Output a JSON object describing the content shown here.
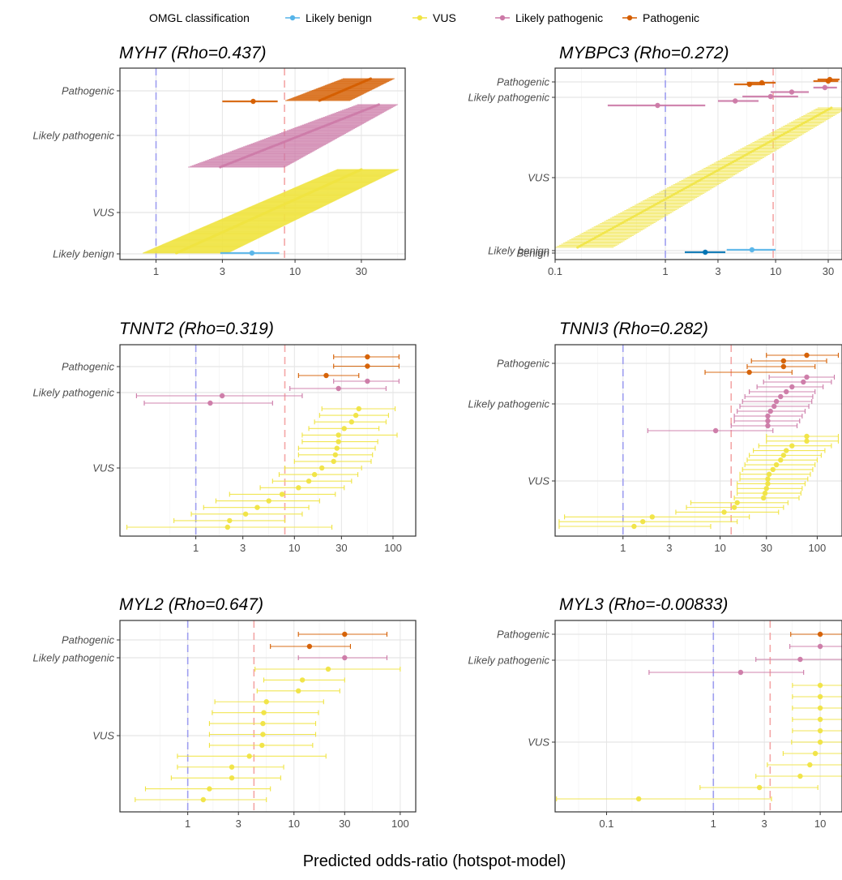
{
  "legend": {
    "title": "OMGL classification",
    "items": [
      {
        "label": "Likely benign",
        "color": "#56B4E9"
      },
      {
        "label": "VUS",
        "color": "#F0E442"
      },
      {
        "label": "Likely pathogenic",
        "color": "#CC79A7"
      },
      {
        "label": "Pathogenic",
        "color": "#D55E00"
      }
    ]
  },
  "x_axis_title": "Predicted odds-ratio (hotspot-model)",
  "reference_lines": {
    "null_or": 1,
    "null_color": "#9e9ef0",
    "threshold_color": "#f4a6a6"
  },
  "chart_data": [
    {
      "type": "scatter",
      "gene": "MYH7",
      "title": "MYH7 (Rho=0.437)",
      "x_scale": "log10",
      "xlim": [
        0.55,
        62
      ],
      "xticks": [
        1,
        3,
        10,
        30
      ],
      "threshold": 8.4,
      "categories": [
        "Pathogenic",
        "Likely pathogenic",
        "VUS",
        "Likely benign"
      ],
      "bands": [
        {
          "category": "Pathogenic",
          "n": 40,
          "lo_min": 8.5,
          "lo_max": 22,
          "mid_min": 15,
          "mid_max": 35,
          "hi_min": 25,
          "hi_max": 52,
          "color": "#D55E00"
        },
        {
          "category": "Likely pathogenic",
          "n": 90,
          "lo_min": 1.7,
          "lo_max": 28,
          "mid_min": 2.9,
          "mid_max": 40,
          "hi_min": 8.5,
          "hi_max": 55,
          "color": "#CC79A7"
        },
        {
          "category": "VUS",
          "n": 220,
          "lo_min": 0.8,
          "lo_max": 20,
          "mid_min": 1.4,
          "mid_max": 30,
          "hi_min": 3.3,
          "hi_max": 56,
          "color": "#F0E442"
        }
      ],
      "points": [
        {
          "category": "Pathogenic",
          "or": 5.0,
          "lo": 3.0,
          "hi": 7.5
        },
        {
          "category": "Likely benign",
          "or": 4.9,
          "lo": 2.9,
          "hi": 7.7
        }
      ]
    },
    {
      "type": "scatter",
      "gene": "MYBPC3",
      "title": "MYBPC3 (Rho=0.272)",
      "x_scale": "log10",
      "xlim": [
        0.1,
        40
      ],
      "xticks": [
        0.1,
        1,
        3,
        10,
        30
      ],
      "threshold": 9.5,
      "categories": [
        "Pathogenic",
        "Likely pathogenic",
        "VUS",
        "Likely benign",
        "Benign"
      ],
      "bands": [
        {
          "category": "VUS",
          "n": 130,
          "lo_min": 0.1,
          "lo_max": 24,
          "mid_min": 0.16,
          "mid_max": 32,
          "hi_min": 0.34,
          "hi_max": 45,
          "color": "#F0E442"
        }
      ],
      "points": [
        {
          "category": "Pathogenic",
          "or": 31,
          "lo": 24,
          "hi": 38
        },
        {
          "category": "Pathogenic",
          "or": 30,
          "lo": 22,
          "hi": 37
        },
        {
          "category": "Pathogenic",
          "or": 7.5,
          "lo": 5.5,
          "hi": 10
        },
        {
          "category": "Pathogenic",
          "or": 5.8,
          "lo": 4.2,
          "hi": 8
        },
        {
          "category": "Likely pathogenic",
          "or": 28,
          "lo": 22,
          "hi": 36
        },
        {
          "category": "Likely pathogenic",
          "or": 14,
          "lo": 9,
          "hi": 20
        },
        {
          "category": "Likely pathogenic",
          "or": 9,
          "lo": 5,
          "hi": 16
        },
        {
          "category": "Likely pathogenic",
          "or": 4.3,
          "lo": 3,
          "hi": 7
        },
        {
          "category": "Likely pathogenic",
          "or": 0.85,
          "lo": 0.3,
          "hi": 2.3
        },
        {
          "category": "Likely benign",
          "or": 6.1,
          "lo": 3.6,
          "hi": 10
        },
        {
          "category": "Benign",
          "or": 2.3,
          "lo": 1.5,
          "hi": 3.5
        }
      ]
    },
    {
      "type": "scatter",
      "gene": "TNNT2",
      "title": "TNNT2 (Rho=0.319)",
      "x_scale": "log10",
      "xlim": [
        0.17,
        170
      ],
      "xticks": [
        1,
        3,
        10,
        30,
        100
      ],
      "threshold": 8.0,
      "categories": [
        "Pathogenic",
        "Likely pathogenic",
        "VUS"
      ],
      "points": [
        {
          "category": "Pathogenic",
          "or": 55,
          "lo": 25,
          "hi": 115
        },
        {
          "category": "Pathogenic",
          "or": 55,
          "lo": 25,
          "hi": 115
        },
        {
          "category": "Pathogenic",
          "or": 21,
          "lo": 11,
          "hi": 45
        },
        {
          "category": "Likely pathogenic",
          "or": 55,
          "lo": 25,
          "hi": 115
        },
        {
          "category": "Likely pathogenic",
          "or": 28,
          "lo": 9,
          "hi": 85
        },
        {
          "category": "Likely pathogenic",
          "or": 1.85,
          "lo": 0.25,
          "hi": 12
        },
        {
          "category": "Likely pathogenic",
          "or": 1.4,
          "lo": 0.3,
          "hi": 6
        },
        {
          "category": "VUS",
          "or": 45,
          "lo": 19,
          "hi": 105
        },
        {
          "category": "VUS",
          "or": 42,
          "lo": 18,
          "hi": 90
        },
        {
          "category": "VUS",
          "or": 38,
          "lo": 16,
          "hi": 85
        },
        {
          "category": "VUS",
          "or": 32,
          "lo": 14,
          "hi": 72
        },
        {
          "category": "VUS",
          "or": 28,
          "lo": 12,
          "hi": 110
        },
        {
          "category": "VUS",
          "or": 28,
          "lo": 12,
          "hi": 70
        },
        {
          "category": "VUS",
          "or": 27,
          "lo": 11,
          "hi": 66
        },
        {
          "category": "VUS",
          "or": 26,
          "lo": 11,
          "hi": 62
        },
        {
          "category": "VUS",
          "or": 25,
          "lo": 10,
          "hi": 60
        },
        {
          "category": "VUS",
          "or": 19,
          "lo": 8,
          "hi": 48
        },
        {
          "category": "VUS",
          "or": 16,
          "lo": 7,
          "hi": 44
        },
        {
          "category": "VUS",
          "or": 14,
          "lo": 6,
          "hi": 38
        },
        {
          "category": "VUS",
          "or": 11,
          "lo": 4.5,
          "hi": 32
        },
        {
          "category": "VUS",
          "or": 7.5,
          "lo": 2.2,
          "hi": 26
        },
        {
          "category": "VUS",
          "or": 5.5,
          "lo": 1.6,
          "hi": 18
        },
        {
          "category": "VUS",
          "or": 4.2,
          "lo": 1.2,
          "hi": 14
        },
        {
          "category": "VUS",
          "or": 3.2,
          "lo": 0.9,
          "hi": 12
        },
        {
          "category": "VUS",
          "or": 2.2,
          "lo": 0.6,
          "hi": 8
        },
        {
          "category": "VUS",
          "or": 2.1,
          "lo": 0.2,
          "hi": 24
        }
      ]
    },
    {
      "type": "scatter",
      "gene": "TNNI3",
      "title": "TNNI3 (Rho=0.282)",
      "x_scale": "log10",
      "xlim": [
        0.2,
        180
      ],
      "xticks": [
        1,
        3,
        10,
        30,
        100
      ],
      "threshold": 13,
      "categories": [
        "Pathogenic",
        "Likely pathogenic",
        "VUS"
      ],
      "points": [
        {
          "category": "Pathogenic",
          "or": 78,
          "lo": 30,
          "hi": 165
        },
        {
          "category": "Pathogenic",
          "or": 45,
          "lo": 21,
          "hi": 125
        },
        {
          "category": "Pathogenic",
          "or": 45,
          "lo": 19,
          "hi": 95
        },
        {
          "category": "Pathogenic",
          "or": 20,
          "lo": 7,
          "hi": 55
        },
        {
          "category": "Likely pathogenic",
          "or": 78,
          "lo": 32,
          "hi": 150
        },
        {
          "category": "Likely pathogenic",
          "or": 72,
          "lo": 28,
          "hi": 140
        },
        {
          "category": "Likely pathogenic",
          "or": 55,
          "lo": 24,
          "hi": 115
        },
        {
          "category": "Likely pathogenic",
          "or": 48,
          "lo": 20,
          "hi": 95
        },
        {
          "category": "Likely pathogenic",
          "or": 42,
          "lo": 18,
          "hi": 90
        },
        {
          "category": "Likely pathogenic",
          "or": 38,
          "lo": 17,
          "hi": 88
        },
        {
          "category": "Likely pathogenic",
          "or": 36,
          "lo": 16,
          "hi": 82
        },
        {
          "category": "Likely pathogenic",
          "or": 33,
          "lo": 15,
          "hi": 75
        },
        {
          "category": "Likely pathogenic",
          "or": 31,
          "lo": 14,
          "hi": 70
        },
        {
          "category": "Likely pathogenic",
          "or": 31,
          "lo": 14,
          "hi": 66
        },
        {
          "category": "Likely pathogenic",
          "or": 31,
          "lo": 13,
          "hi": 62
        },
        {
          "category": "Likely pathogenic",
          "or": 9,
          "lo": 1.8,
          "hi": 35
        },
        {
          "category": "VUS",
          "or": 78,
          "lo": 30,
          "hi": 165
        },
        {
          "category": "VUS",
          "or": 78,
          "lo": 30,
          "hi": 165
        },
        {
          "category": "VUS",
          "or": 55,
          "lo": 25,
          "hi": 140
        },
        {
          "category": "VUS",
          "or": 48,
          "lo": 22,
          "hi": 120
        },
        {
          "category": "VUS",
          "or": 45,
          "lo": 20,
          "hi": 110
        },
        {
          "category": "VUS",
          "or": 42,
          "lo": 19,
          "hi": 100
        },
        {
          "category": "VUS",
          "or": 38,
          "lo": 18,
          "hi": 95
        },
        {
          "category": "VUS",
          "or": 35,
          "lo": 17,
          "hi": 90
        },
        {
          "category": "VUS",
          "or": 32,
          "lo": 16,
          "hi": 85
        },
        {
          "category": "VUS",
          "or": 31,
          "lo": 16,
          "hi": 80
        },
        {
          "category": "VUS",
          "or": 31,
          "lo": 15,
          "hi": 75
        },
        {
          "category": "VUS",
          "or": 30,
          "lo": 15,
          "hi": 70
        },
        {
          "category": "VUS",
          "or": 29,
          "lo": 15,
          "hi": 68
        },
        {
          "category": "VUS",
          "or": 28,
          "lo": 14,
          "hi": 65
        },
        {
          "category": "VUS",
          "or": 15,
          "lo": 5,
          "hi": 50
        },
        {
          "category": "VUS",
          "or": 14,
          "lo": 4.5,
          "hi": 45
        },
        {
          "category": "VUS",
          "or": 11,
          "lo": 3.5,
          "hi": 40
        },
        {
          "category": "VUS",
          "or": 2.0,
          "lo": 0.25,
          "hi": 20
        },
        {
          "category": "VUS",
          "or": 1.6,
          "lo": 0.22,
          "hi": 15
        },
        {
          "category": "VUS",
          "or": 1.3,
          "lo": 0.22,
          "hi": 8
        }
      ]
    },
    {
      "type": "scatter",
      "gene": "MYL2",
      "title": "MYL2 (Rho=0.647)",
      "x_scale": "log10",
      "xlim": [
        0.23,
        140
      ],
      "xticks": [
        1,
        3,
        10,
        30,
        100
      ],
      "threshold": 4.2,
      "categories": [
        "Pathogenic",
        "Likely pathogenic",
        "VUS"
      ],
      "points": [
        {
          "category": "Pathogenic",
          "or": 30,
          "lo": 11,
          "hi": 75
        },
        {
          "category": "Pathogenic",
          "or": 14,
          "lo": 6,
          "hi": 34
        },
        {
          "category": "Likely pathogenic",
          "or": 30,
          "lo": 11,
          "hi": 75
        },
        {
          "category": "VUS",
          "or": 21,
          "lo": 4.3,
          "hi": 100
        },
        {
          "category": "VUS",
          "or": 12,
          "lo": 5.2,
          "hi": 30
        },
        {
          "category": "VUS",
          "or": 11,
          "lo": 4.5,
          "hi": 27
        },
        {
          "category": "VUS",
          "or": 5.5,
          "lo": 1.8,
          "hi": 19
        },
        {
          "category": "VUS",
          "or": 5.2,
          "lo": 1.7,
          "hi": 17
        },
        {
          "category": "VUS",
          "or": 5.1,
          "lo": 1.6,
          "hi": 16
        },
        {
          "category": "VUS",
          "or": 5.1,
          "lo": 1.6,
          "hi": 16
        },
        {
          "category": "VUS",
          "or": 5.0,
          "lo": 1.6,
          "hi": 15
        },
        {
          "category": "VUS",
          "or": 3.8,
          "lo": 0.8,
          "hi": 20
        },
        {
          "category": "VUS",
          "or": 2.6,
          "lo": 0.8,
          "hi": 8
        },
        {
          "category": "VUS",
          "or": 2.6,
          "lo": 0.7,
          "hi": 7.5
        },
        {
          "category": "VUS",
          "or": 1.6,
          "lo": 0.4,
          "hi": 6
        },
        {
          "category": "VUS",
          "or": 1.4,
          "lo": 0.32,
          "hi": 5.5
        }
      ]
    },
    {
      "type": "scatter",
      "gene": "MYL3",
      "title": "MYL3 (Rho=-0.00833)",
      "x_scale": "log10",
      "xlim": [
        0.033,
        16
      ],
      "xticks": [
        0.1,
        1,
        3,
        10
      ],
      "threshold": 3.4,
      "categories": [
        "Pathogenic",
        "Likely pathogenic",
        "VUS"
      ],
      "points": [
        {
          "category": "Pathogenic",
          "or": 10,
          "lo": 5.3,
          "hi": 18
        },
        {
          "category": "Likely pathogenic",
          "or": 10,
          "lo": 5.2,
          "hi": 18
        },
        {
          "category": "Likely pathogenic",
          "or": 6.5,
          "lo": 2.5,
          "hi": 16
        },
        {
          "category": "Likely pathogenic",
          "or": 1.8,
          "lo": 0.25,
          "hi": 7
        },
        {
          "category": "VUS",
          "or": 10,
          "lo": 5.5,
          "hi": 19
        },
        {
          "category": "VUS",
          "or": 10,
          "lo": 5.5,
          "hi": 19
        },
        {
          "category": "VUS",
          "or": 10,
          "lo": 5.5,
          "hi": 19
        },
        {
          "category": "VUS",
          "or": 10,
          "lo": 5.5,
          "hi": 19
        },
        {
          "category": "VUS",
          "or": 10,
          "lo": 5.5,
          "hi": 19
        },
        {
          "category": "VUS",
          "or": 10,
          "lo": 5.4,
          "hi": 18.5
        },
        {
          "category": "VUS",
          "or": 9,
          "lo": 4.5,
          "hi": 17
        },
        {
          "category": "VUS",
          "or": 8,
          "lo": 3.2,
          "hi": 19
        },
        {
          "category": "VUS",
          "or": 6.5,
          "lo": 2.5,
          "hi": 16
        },
        {
          "category": "VUS",
          "or": 2.7,
          "lo": 0.75,
          "hi": 9.5
        },
        {
          "category": "VUS",
          "or": 0.2,
          "lo": 0.034,
          "hi": 3.5
        }
      ]
    }
  ]
}
